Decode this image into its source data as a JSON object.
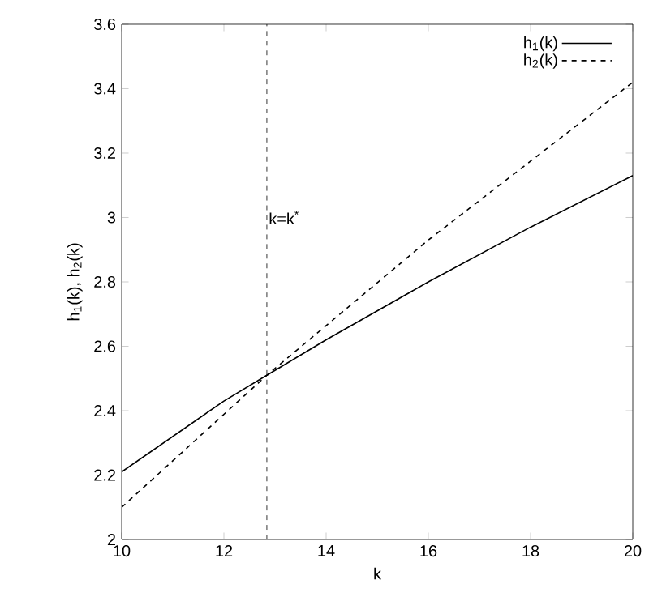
{
  "chart_data": {
    "type": "line",
    "xlabel": "k",
    "ylabel": "h$_{1}$(k), h$_{2}$(k)",
    "xlim": [
      10,
      20
    ],
    "ylim": [
      2,
      3.6
    ],
    "xticks": [
      10,
      12,
      14,
      16,
      18,
      20
    ],
    "yticks": [
      2,
      2.2,
      2.4,
      2.6,
      2.8,
      3,
      3.2,
      3.4,
      3.6
    ],
    "grid": false,
    "legend": "top right",
    "marker": "none",
    "series": [
      {
        "name": "h$_{1}$(k)",
        "color": "#000000",
        "line_style": "solid",
        "x": [
          10,
          12,
          12.84,
          14,
          16,
          18,
          20
        ],
        "values": [
          2.21,
          2.43,
          2.51,
          2.62,
          2.8,
          2.97,
          3.13
        ]
      },
      {
        "name": "h$_{2}$(k)",
        "color": "#000000",
        "line_style": "dashed",
        "x": [
          10,
          12.84,
          16,
          20
        ],
        "values": [
          2.1,
          2.51,
          2.93,
          3.42
        ]
      }
    ],
    "ref_lines": [
      {
        "axis": "x",
        "value": 12.84,
        "label": "k=k$^{*}$",
        "color": "#000000",
        "line_style": "dashed"
      }
    ]
  }
}
